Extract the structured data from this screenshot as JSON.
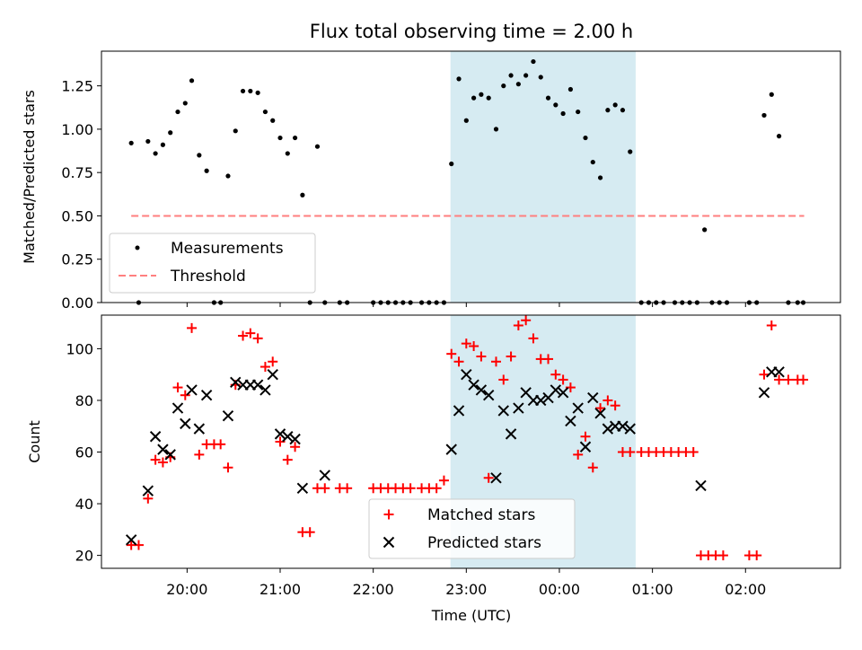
{
  "figure": {
    "title": "Flux total observing time = 2.00 h"
  },
  "colors": {
    "measurement": "#000000",
    "threshold": "#ff7f7f",
    "matched": "#ff0000",
    "predicted": "#000000",
    "highlight": "#add8e6"
  },
  "chart_data": [
    {
      "type": "scatter",
      "panel": "top",
      "xlabel": "",
      "ylabel": "Matched/Predicted stars",
      "xlim_hours": [
        19.08,
        27.02
      ],
      "ylim": [
        0,
        1.45
      ],
      "yticks": [
        0.0,
        0.25,
        0.5,
        0.75,
        1.0,
        1.25
      ],
      "ytick_labels": [
        "0.00",
        "0.25",
        "0.50",
        "0.75",
        "1.00",
        "1.25",
        ""
      ],
      "highlight_span_hours": [
        22.83,
        24.82
      ],
      "threshold": {
        "name": "Threshold",
        "y": 0.5,
        "x_range_hours": [
          19.4,
          26.63
        ],
        "style": "dashed"
      },
      "legend": {
        "placement": "lower-left",
        "entries": [
          "Measurements",
          "Threshold"
        ]
      },
      "series": [
        {
          "name": "Measurements",
          "marker": "dot",
          "points": [
            [
              19.4,
              0.92
            ],
            [
              19.48,
              0
            ],
            [
              19.58,
              0.93
            ],
            [
              19.66,
              0.86
            ],
            [
              19.74,
              0.91
            ],
            [
              19.82,
              0.98
            ],
            [
              19.9,
              1.1
            ],
            [
              19.98,
              1.15
            ],
            [
              20.05,
              1.28
            ],
            [
              20.13,
              0.85
            ],
            [
              20.21,
              0.76
            ],
            [
              20.29,
              0
            ],
            [
              20.36,
              0
            ],
            [
              20.44,
              0.73
            ],
            [
              20.52,
              0.99
            ],
            [
              20.6,
              1.22
            ],
            [
              20.68,
              1.22
            ],
            [
              20.76,
              1.21
            ],
            [
              20.84,
              1.1
            ],
            [
              20.92,
              1.05
            ],
            [
              21.0,
              0.95
            ],
            [
              21.08,
              0.86
            ],
            [
              21.16,
              0.95
            ],
            [
              21.24,
              0.62
            ],
            [
              21.32,
              0
            ],
            [
              21.4,
              0.9
            ],
            [
              21.48,
              0
            ],
            [
              21.64,
              0
            ],
            [
              21.72,
              0
            ],
            [
              22.0,
              0
            ],
            [
              22.08,
              0
            ],
            [
              22.16,
              0
            ],
            [
              22.24,
              0
            ],
            [
              22.32,
              0
            ],
            [
              22.4,
              0
            ],
            [
              22.52,
              0
            ],
            [
              22.6,
              0
            ],
            [
              22.68,
              0
            ],
            [
              22.76,
              0
            ],
            [
              22.84,
              0.8
            ],
            [
              22.92,
              1.29
            ],
            [
              23.0,
              1.05
            ],
            [
              23.08,
              1.18
            ],
            [
              23.16,
              1.2
            ],
            [
              23.24,
              1.18
            ],
            [
              23.32,
              1.0
            ],
            [
              23.4,
              1.25
            ],
            [
              23.48,
              1.31
            ],
            [
              23.56,
              1.26
            ],
            [
              23.64,
              1.31
            ],
            [
              23.72,
              1.39
            ],
            [
              23.8,
              1.3
            ],
            [
              23.88,
              1.18
            ],
            [
              23.96,
              1.14
            ],
            [
              24.04,
              1.09
            ],
            [
              24.12,
              1.23
            ],
            [
              24.2,
              1.1
            ],
            [
              24.28,
              0.95
            ],
            [
              24.36,
              0.81
            ],
            [
              24.44,
              0.72
            ],
            [
              24.52,
              1.11
            ],
            [
              24.6,
              1.14
            ],
            [
              24.68,
              1.11
            ],
            [
              24.76,
              0.87
            ],
            [
              24.88,
              0
            ],
            [
              24.96,
              0
            ],
            [
              25.04,
              0
            ],
            [
              25.12,
              0
            ],
            [
              25.24,
              0
            ],
            [
              25.32,
              0
            ],
            [
              25.4,
              0
            ],
            [
              25.48,
              0
            ],
            [
              25.56,
              0.42
            ],
            [
              25.64,
              0
            ],
            [
              25.72,
              0
            ],
            [
              25.8,
              0
            ],
            [
              26.04,
              0
            ],
            [
              26.12,
              0
            ],
            [
              26.2,
              1.08
            ],
            [
              26.28,
              1.2
            ],
            [
              26.36,
              0.96
            ],
            [
              26.46,
              0
            ],
            [
              26.56,
              0
            ],
            [
              26.62,
              0
            ]
          ]
        }
      ]
    },
    {
      "type": "scatter",
      "panel": "bottom",
      "xlabel": "Time (UTC)",
      "ylabel": "Count",
      "xlim_hours": [
        19.08,
        27.02
      ],
      "ylim": [
        15,
        113
      ],
      "xticks_hours": [
        20,
        21,
        22,
        23,
        24,
        25,
        26
      ],
      "xtick_labels": [
        "20:00",
        "21:00",
        "22:00",
        "23:00",
        "00:00",
        "01:00",
        "02:00"
      ],
      "yticks": [
        20,
        40,
        60,
        80,
        100
      ],
      "ytick_labels": [
        "20",
        "40",
        "60",
        "80",
        "100"
      ],
      "highlight_span_hours": [
        22.83,
        24.82
      ],
      "legend": {
        "placement": "lower-center",
        "entries": [
          "Matched stars",
          "Predicted stars"
        ]
      },
      "series": [
        {
          "name": "Matched stars",
          "marker": "plus",
          "points": [
            [
              19.4,
              24
            ],
            [
              19.48,
              24
            ],
            [
              19.58,
              42
            ],
            [
              19.66,
              57
            ],
            [
              19.74,
              56
            ],
            [
              19.82,
              58
            ],
            [
              19.9,
              85
            ],
            [
              19.98,
              82
            ],
            [
              20.05,
              108
            ],
            [
              20.13,
              59
            ],
            [
              20.21,
              63
            ],
            [
              20.29,
              63
            ],
            [
              20.36,
              63
            ],
            [
              20.44,
              54
            ],
            [
              20.52,
              86
            ],
            [
              20.6,
              105
            ],
            [
              20.68,
              106
            ],
            [
              20.76,
              104
            ],
            [
              20.84,
              93
            ],
            [
              20.92,
              95
            ],
            [
              21.0,
              64
            ],
            [
              21.08,
              57
            ],
            [
              21.16,
              62
            ],
            [
              21.24,
              29
            ],
            [
              21.32,
              29
            ],
            [
              21.4,
              46
            ],
            [
              21.48,
              46
            ],
            [
              21.64,
              46
            ],
            [
              21.72,
              46
            ],
            [
              22.0,
              46
            ],
            [
              22.08,
              46
            ],
            [
              22.16,
              46
            ],
            [
              22.24,
              46
            ],
            [
              22.32,
              46
            ],
            [
              22.4,
              46
            ],
            [
              22.52,
              46
            ],
            [
              22.6,
              46
            ],
            [
              22.68,
              46
            ],
            [
              22.76,
              49
            ],
            [
              22.84,
              98
            ],
            [
              22.92,
              95
            ],
            [
              23.0,
              102
            ],
            [
              23.08,
              101
            ],
            [
              23.16,
              97
            ],
            [
              23.24,
              50
            ],
            [
              23.32,
              95
            ],
            [
              23.4,
              88
            ],
            [
              23.48,
              97
            ],
            [
              23.56,
              109
            ],
            [
              23.64,
              111
            ],
            [
              23.72,
              104
            ],
            [
              23.8,
              96
            ],
            [
              23.88,
              96
            ],
            [
              23.96,
              90
            ],
            [
              24.04,
              88
            ],
            [
              24.12,
              85
            ],
            [
              24.2,
              59
            ],
            [
              24.28,
              66
            ],
            [
              24.36,
              54
            ],
            [
              24.44,
              77
            ],
            [
              24.52,
              80
            ],
            [
              24.6,
              78
            ],
            [
              24.68,
              60
            ],
            [
              24.76,
              60
            ],
            [
              24.88,
              60
            ],
            [
              24.96,
              60
            ],
            [
              25.04,
              60
            ],
            [
              25.12,
              60
            ],
            [
              25.2,
              60
            ],
            [
              25.28,
              60
            ],
            [
              25.36,
              60
            ],
            [
              25.44,
              60
            ],
            [
              25.52,
              20
            ],
            [
              25.6,
              20
            ],
            [
              25.68,
              20
            ],
            [
              25.76,
              20
            ],
            [
              26.04,
              20
            ],
            [
              26.12,
              20
            ],
            [
              26.2,
              90
            ],
            [
              26.28,
              109
            ],
            [
              26.36,
              88
            ],
            [
              26.46,
              88
            ],
            [
              26.56,
              88
            ],
            [
              26.62,
              88
            ]
          ]
        },
        {
          "name": "Predicted stars",
          "marker": "x",
          "points": [
            [
              19.4,
              26
            ],
            [
              19.58,
              45
            ],
            [
              19.66,
              66
            ],
            [
              19.74,
              61
            ],
            [
              19.82,
              59
            ],
            [
              19.9,
              77
            ],
            [
              19.98,
              71
            ],
            [
              20.05,
              84
            ],
            [
              20.13,
              69
            ],
            [
              20.21,
              82
            ],
            [
              20.44,
              74
            ],
            [
              20.52,
              87
            ],
            [
              20.6,
              86
            ],
            [
              20.68,
              86
            ],
            [
              20.76,
              86
            ],
            [
              20.84,
              84
            ],
            [
              20.92,
              90
            ],
            [
              21.0,
              67
            ],
            [
              21.08,
              66
            ],
            [
              21.16,
              65
            ],
            [
              21.24,
              46
            ],
            [
              21.48,
              51
            ],
            [
              22.84,
              61
            ],
            [
              22.92,
              76
            ],
            [
              23.0,
              90
            ],
            [
              23.08,
              86
            ],
            [
              23.16,
              84
            ],
            [
              23.24,
              82
            ],
            [
              23.32,
              50
            ],
            [
              23.4,
              76
            ],
            [
              23.48,
              67
            ],
            [
              23.56,
              77
            ],
            [
              23.64,
              83
            ],
            [
              23.72,
              80
            ],
            [
              23.8,
              80
            ],
            [
              23.88,
              81
            ],
            [
              23.96,
              84
            ],
            [
              24.04,
              83
            ],
            [
              24.12,
              72
            ],
            [
              24.2,
              77
            ],
            [
              24.28,
              62
            ],
            [
              24.36,
              81
            ],
            [
              24.44,
              75
            ],
            [
              24.52,
              69
            ],
            [
              24.6,
              70
            ],
            [
              24.68,
              70
            ],
            [
              24.76,
              69
            ],
            [
              25.52,
              47
            ],
            [
              26.2,
              83
            ],
            [
              26.28,
              91
            ],
            [
              26.36,
              91
            ]
          ]
        }
      ]
    }
  ]
}
